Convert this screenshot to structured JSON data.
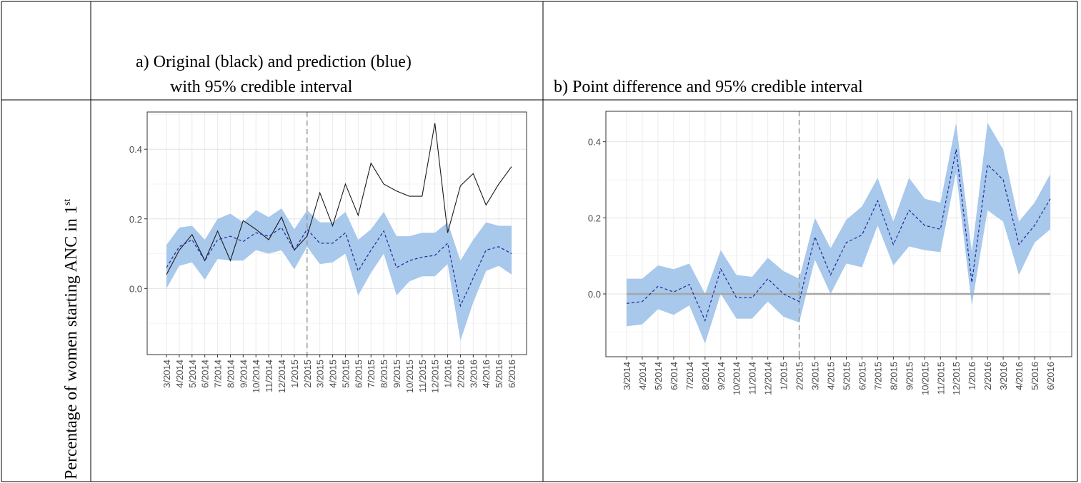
{
  "table": {
    "row_label": [
      "Percentage of women starting ANC in 1",
      "st"
    ]
  },
  "chart_data": [
    {
      "type": "line",
      "title": "a)  Original (black) and prediction (blue)",
      "subtitle": "with 95% credible interval",
      "categories": [
        "3/2014",
        "4/2014",
        "5/2014",
        "6/2014",
        "7/2014",
        "8/2014",
        "9/2014",
        "10/2014",
        "11/2014",
        "12/2014",
        "1/2015",
        "2/2015",
        "3/2015",
        "4/2015",
        "5/2015",
        "6/2015",
        "7/2015",
        "8/2015",
        "9/2015",
        "10/2015",
        "11/2015",
        "12/2015",
        "1/2016",
        "2/2016",
        "3/2016",
        "4/2016",
        "5/2016",
        "6/2016"
      ],
      "series": [
        {
          "color": "#1a1a1a",
          "style": "solid",
          "values": [
            0.04,
            0.11,
            0.155,
            0.08,
            0.165,
            0.08,
            0.195,
            0.17,
            0.14,
            0.205,
            0.11,
            0.15,
            0.275,
            0.18,
            0.3,
            0.21,
            0.36,
            0.3,
            0.28,
            0.265,
            0.265,
            0.475,
            0.16,
            0.295,
            0.33,
            0.24,
            0.3,
            0.35
          ]
        },
        {
          "color": "#1f2a9a",
          "style": "dashed",
          "values": [
            0.06,
            0.12,
            0.14,
            0.08,
            0.14,
            0.15,
            0.135,
            0.16,
            0.15,
            0.175,
            0.11,
            0.17,
            0.13,
            0.13,
            0.16,
            0.05,
            0.11,
            0.165,
            0.06,
            0.08,
            0.09,
            0.095,
            0.13,
            -0.05,
            0.03,
            0.11,
            0.12,
            0.1
          ]
        }
      ],
      "band": {
        "color": "#a8c8ec",
        "lower": [
          0.0,
          0.065,
          0.075,
          0.025,
          0.085,
          0.08,
          0.08,
          0.11,
          0.1,
          0.11,
          0.055,
          0.12,
          0.07,
          0.075,
          0.1,
          -0.02,
          0.045,
          0.1,
          -0.02,
          0.02,
          0.035,
          0.035,
          0.07,
          -0.15,
          -0.04,
          0.05,
          0.065,
          0.04
        ],
        "upper": [
          0.125,
          0.175,
          0.18,
          0.14,
          0.2,
          0.215,
          0.19,
          0.225,
          0.205,
          0.23,
          0.17,
          0.225,
          0.19,
          0.19,
          0.22,
          0.14,
          0.17,
          0.22,
          0.15,
          0.15,
          0.16,
          0.16,
          0.19,
          0.08,
          0.14,
          0.19,
          0.18,
          0.18
        ]
      },
      "vline_at": "2/2015",
      "ylim": [
        -0.19,
        0.507
      ],
      "yticks": [
        {
          "value": 0,
          "label": "0.0"
        },
        0.2,
        0.4
      ],
      "grid": true
    },
    {
      "type": "line",
      "title": "b)  Point difference and 95% credible interval",
      "categories": [
        "3/2014",
        "4/2014",
        "5/2014",
        "6/2014",
        "7/2014",
        "8/2014",
        "9/2014",
        "10/2014",
        "11/2014",
        "12/2014",
        "1/2015",
        "2/2015",
        "3/2015",
        "4/2015",
        "5/2015",
        "6/2015",
        "7/2015",
        "8/2015",
        "9/2015",
        "10/2015",
        "11/2015",
        "12/2015",
        "1/2016",
        "2/2016",
        "3/2016",
        "4/2016",
        "5/2016",
        "6/2016"
      ],
      "series": [
        {
          "color": "#1f2a9a",
          "style": "dashed",
          "values": [
            -0.025,
            -0.02,
            0.02,
            0.005,
            0.025,
            -0.07,
            0.065,
            -0.01,
            -0.01,
            0.04,
            0.0,
            -0.02,
            0.15,
            0.05,
            0.135,
            0.155,
            0.245,
            0.13,
            0.22,
            0.18,
            0.17,
            0.38,
            0.03,
            0.34,
            0.3,
            0.13,
            0.18,
            0.25
          ]
        }
      ],
      "band": {
        "color": "#a8c8ec",
        "lower": [
          -0.085,
          -0.08,
          -0.04,
          -0.055,
          -0.03,
          -0.13,
          0.0,
          -0.065,
          -0.065,
          -0.02,
          -0.06,
          -0.075,
          0.09,
          0.0,
          0.08,
          0.07,
          0.18,
          0.075,
          0.125,
          0.115,
          0.11,
          0.32,
          -0.03,
          0.22,
          0.19,
          0.05,
          0.135,
          0.17
        ],
        "upper": [
          0.04,
          0.04,
          0.075,
          0.065,
          0.08,
          0.0,
          0.115,
          0.05,
          0.045,
          0.095,
          0.06,
          0.04,
          0.2,
          0.12,
          0.195,
          0.23,
          0.305,
          0.19,
          0.305,
          0.25,
          0.24,
          0.45,
          0.11,
          0.45,
          0.38,
          0.19,
          0.24,
          0.315
        ]
      },
      "vline_at": "2/2015",
      "hline": 0,
      "hline_color": "#a6a6a6",
      "ylim": [
        -0.165,
        0.48
      ],
      "yticks": [
        {
          "value": 0,
          "label": "0.0"
        },
        0.2,
        0.4
      ],
      "grid": true
    }
  ]
}
